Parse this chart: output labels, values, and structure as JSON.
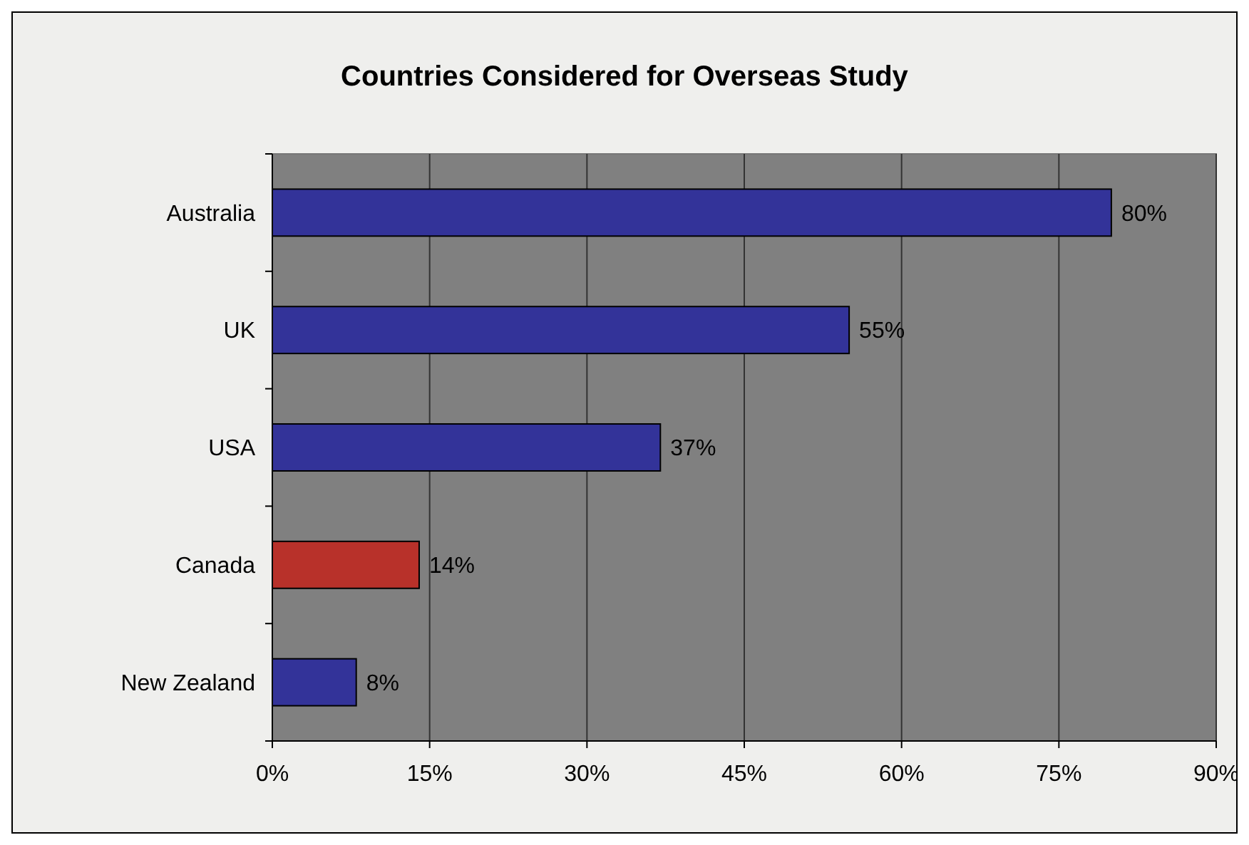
{
  "chart_data": {
    "type": "bar",
    "orientation": "horizontal",
    "title": "Countries Considered for Overseas Study",
    "categories": [
      "Australia",
      "UK",
      "USA",
      "Canada",
      "New Zealand"
    ],
    "values": [
      80,
      55,
      37,
      14,
      8
    ],
    "colors": [
      "#333399",
      "#333399",
      "#333399",
      "#b8312a",
      "#333399"
    ],
    "value_labels": [
      "80%",
      "55%",
      "37%",
      "14%",
      "8%"
    ],
    "xlim": [
      0,
      90
    ],
    "xticks": [
      {
        "value": 0,
        "label": "0%"
      },
      {
        "value": 15,
        "label": "15%"
      },
      {
        "value": 30,
        "label": "30%"
      },
      {
        "value": 45,
        "label": "45%"
      },
      {
        "value": 60,
        "label": "60%"
      },
      {
        "value": 75,
        "label": "75%"
      },
      {
        "value": 90,
        "label": "90%"
      }
    ],
    "grid": "x"
  }
}
